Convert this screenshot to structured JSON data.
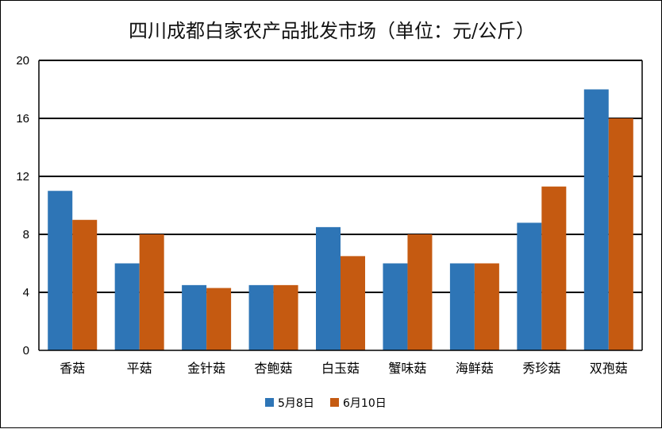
{
  "chart_data": {
    "type": "bar",
    "title": "四川成都白家农产品批发市场（单位：元/公斤）",
    "xlabel": "",
    "ylabel": "",
    "categories": [
      "香菇",
      "平菇",
      "金针菇",
      "杏鲍菇",
      "白玉菇",
      "蟹味菇",
      "海鲜菇",
      "秀珍菇",
      "双孢菇"
    ],
    "series": [
      {
        "name": "5月8日",
        "color": "#2E75B6",
        "values": [
          11,
          6,
          4.5,
          4.5,
          8.5,
          6,
          6,
          8.8,
          18
        ]
      },
      {
        "name": "6月10日",
        "color": "#C55A11",
        "values": [
          9,
          8,
          4.3,
          4.5,
          6.5,
          8,
          6,
          11.3,
          16
        ]
      }
    ],
    "ylim": [
      0,
      20
    ],
    "yticks": [
      "0",
      "4",
      "8",
      "12",
      "16",
      "20"
    ],
    "grid": true,
    "legend_position": "bottom"
  }
}
